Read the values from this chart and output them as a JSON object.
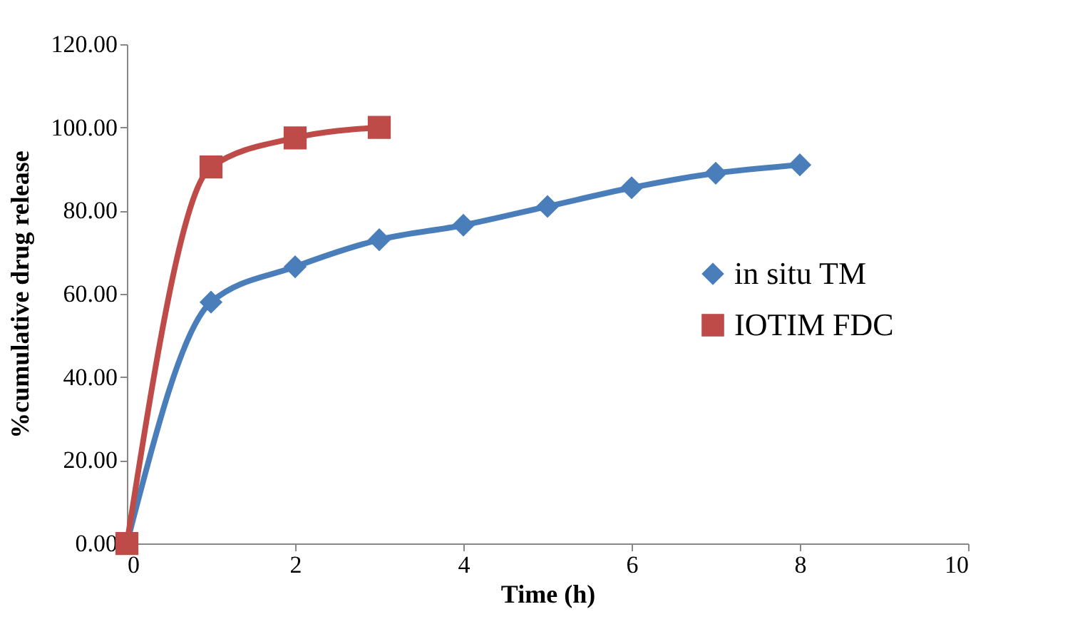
{
  "chart_data": {
    "type": "line",
    "xlabel": "Time (h)",
    "ylabel": "%cumulative drug release",
    "xlim": [
      0,
      10
    ],
    "xticks": [
      0,
      2,
      4,
      6,
      8,
      10
    ],
    "ylim": [
      0,
      120
    ],
    "yticks": [
      {
        "value": 0,
        "label": "0.00"
      },
      {
        "value": 20,
        "label": "20.00"
      },
      {
        "value": 40,
        "label": "40.00"
      },
      {
        "value": 60,
        "label": "60.00"
      },
      {
        "value": 80,
        "label": "80.00"
      },
      {
        "value": 100,
        "label": "100.00"
      },
      {
        "value": 120,
        "label": "120.00"
      }
    ],
    "grid": false,
    "legend": "right",
    "line_style": "solid",
    "series": [
      {
        "name": "in situ TM",
        "color": "#4a7ebb",
        "marker": "diamond",
        "x": [
          0,
          1,
          2,
          3,
          4,
          5,
          6,
          7,
          8
        ],
        "values": [
          0,
          58,
          66.5,
          73,
          76.5,
          81,
          85.5,
          89,
          91
        ]
      },
      {
        "name": "IOTIM FDC",
        "color": "#be4b48",
        "marker": "square",
        "x": [
          0,
          1,
          2,
          3
        ],
        "values": [
          0,
          90.5,
          97.5,
          100
        ]
      }
    ]
  }
}
